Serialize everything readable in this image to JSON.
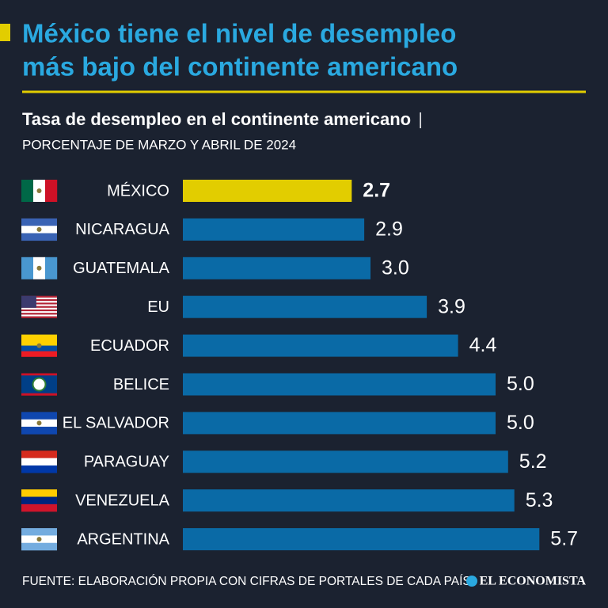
{
  "chart_data": {
    "type": "bar",
    "orientation": "horizontal",
    "title_lines": [
      "México tiene el nivel de desempleo",
      "más bajo del continente americano"
    ],
    "subtitle": "Tasa de desempleo en el continente americano",
    "unit_note": "PORCENTAJE DE MARZO Y ABRIL DE 2024",
    "categories": [
      "MÉXICO",
      "NICARAGUA",
      "GUATEMALA",
      "EU",
      "ECUADOR",
      "BELICE",
      "EL SALVADOR",
      "PARAGUAY",
      "VENEZUELA",
      "ARGENTINA"
    ],
    "values": [
      2.7,
      2.9,
      3.0,
      3.9,
      4.4,
      5.0,
      5.0,
      5.2,
      5.3,
      5.7
    ],
    "value_labels": [
      "2.7",
      "2.9",
      "3.0",
      "3.9",
      "4.4",
      "5.0",
      "5.0",
      "5.2",
      "5.3",
      "5.7"
    ],
    "colors": [
      "#e2cd00",
      "#0a6aa6",
      "#0a6aa6",
      "#0a6aa6",
      "#0a6aa6",
      "#0a6aa6",
      "#0a6aa6",
      "#0a6aa6",
      "#0a6aa6",
      "#0a6aa6"
    ],
    "source": "FUENTE: ELABORACIÓN PROPIA CON CIFRAS DE PORTALES DE CADA PAÍS",
    "publisher": "EL ECONOMISTA"
  }
}
